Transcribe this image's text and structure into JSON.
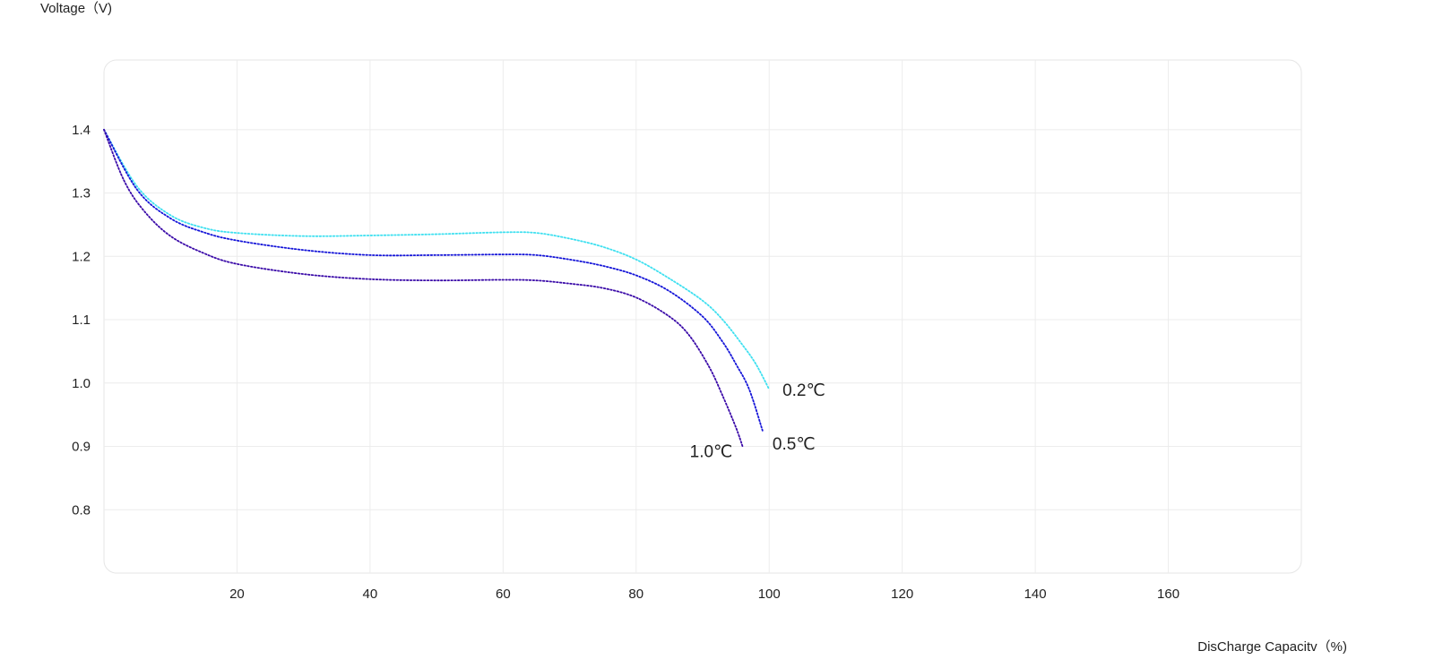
{
  "chart_data": {
    "type": "line",
    "xlabel": "DisCharge Capacitv（%)",
    "ylabel": "Voltage（V)",
    "xlim": [
      0,
      180
    ],
    "ylim": [
      0.7,
      1.51
    ],
    "x_ticks": [
      20,
      40,
      60,
      80,
      100,
      120,
      140,
      160
    ],
    "y_ticks": [
      0.8,
      0.9,
      1.0,
      1.1,
      1.2,
      1.3,
      1.4
    ],
    "x_tick_labels": [
      "20",
      "40",
      "60",
      "80",
      "100",
      "120",
      "140",
      "160"
    ],
    "y_tick_labels": [
      "0.8",
      "0.9",
      "1.0",
      "1.1",
      "1.2",
      "1.3",
      "1.4"
    ],
    "grid": true,
    "line_style": "dotted",
    "series": [
      {
        "name": "0.2℃",
        "color": "#3fe0f0",
        "points": [
          [
            0,
            1.4
          ],
          [
            5,
            1.31
          ],
          [
            10,
            1.265
          ],
          [
            15,
            1.245
          ],
          [
            20,
            1.237
          ],
          [
            30,
            1.232
          ],
          [
            40,
            1.233
          ],
          [
            50,
            1.235
          ],
          [
            60,
            1.238
          ],
          [
            65,
            1.237
          ],
          [
            70,
            1.228
          ],
          [
            75,
            1.215
          ],
          [
            80,
            1.195
          ],
          [
            85,
            1.165
          ],
          [
            90,
            1.13
          ],
          [
            93,
            1.1
          ],
          [
            96,
            1.06
          ],
          [
            98,
            1.03
          ],
          [
            100,
            0.99
          ]
        ]
      },
      {
        "name": "0.5℃",
        "color": "#1515d8",
        "points": [
          [
            0,
            1.4
          ],
          [
            5,
            1.305
          ],
          [
            10,
            1.26
          ],
          [
            15,
            1.238
          ],
          [
            20,
            1.225
          ],
          [
            30,
            1.21
          ],
          [
            40,
            1.202
          ],
          [
            50,
            1.202
          ],
          [
            60,
            1.203
          ],
          [
            65,
            1.202
          ],
          [
            70,
            1.195
          ],
          [
            75,
            1.185
          ],
          [
            80,
            1.17
          ],
          [
            85,
            1.145
          ],
          [
            90,
            1.105
          ],
          [
            93,
            1.065
          ],
          [
            95,
            1.03
          ],
          [
            97,
            0.99
          ],
          [
            99,
            0.925
          ]
        ]
      },
      {
        "name": "1.0℃",
        "color": "#3a0aa8",
        "points": [
          [
            0,
            1.4
          ],
          [
            3,
            1.32
          ],
          [
            6,
            1.272
          ],
          [
            10,
            1.232
          ],
          [
            15,
            1.205
          ],
          [
            20,
            1.188
          ],
          [
            30,
            1.172
          ],
          [
            40,
            1.164
          ],
          [
            50,
            1.162
          ],
          [
            60,
            1.163
          ],
          [
            65,
            1.162
          ],
          [
            70,
            1.157
          ],
          [
            75,
            1.15
          ],
          [
            80,
            1.135
          ],
          [
            85,
            1.105
          ],
          [
            88,
            1.075
          ],
          [
            91,
            1.025
          ],
          [
            93,
            0.98
          ],
          [
            95,
            0.93
          ],
          [
            96,
            0.9
          ]
        ]
      }
    ],
    "annotations": [
      {
        "series": "0.2℃",
        "text": "0.2℃",
        "x": 102,
        "y": 0.99
      },
      {
        "series": "0.5℃",
        "text": "0.5℃",
        "x": 100.5,
        "y": 0.905
      },
      {
        "series": "1.0℃",
        "text": "1.0℃",
        "x": 94.5,
        "y": 0.893
      }
    ]
  }
}
